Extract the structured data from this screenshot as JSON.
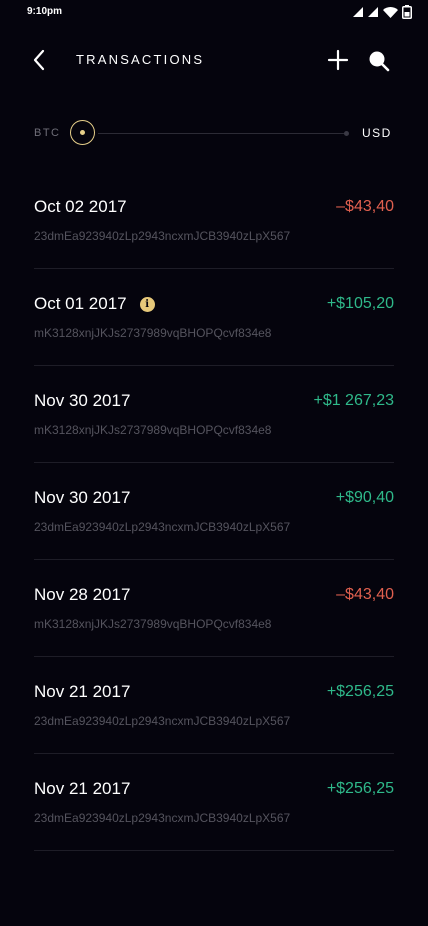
{
  "status_bar": {
    "time": "9:10pm",
    "icons": [
      "signal-icon",
      "signal-icon",
      "wifi-icon",
      "battery-icon"
    ]
  },
  "header": {
    "title": "TRANSACTIONS",
    "back_icon": "chevron-left-icon",
    "add_icon": "plus-icon",
    "search_icon": "search-icon"
  },
  "currency_toggle": {
    "left_label": "BTC",
    "right_label": "USD",
    "accent_color": "#e6cf8a"
  },
  "colors": {
    "negative": "#e0604f",
    "positive": "#2fb98a",
    "background": "#05040d"
  },
  "transactions": [
    {
      "date": "Oct 02 2017",
      "amount": "–$43,40",
      "sign": "neg",
      "hash": "23dmEa923940zLp2943ncxmJCB3940zLpX567",
      "info": false
    },
    {
      "date": "Oct 01 2017",
      "amount": "+$105,20",
      "sign": "pos",
      "hash": "mK3128xnjJKJs2737989vqBHOPQcvf834e8",
      "info": true
    },
    {
      "date": "Nov 30 2017",
      "amount": "+$1 267,23",
      "sign": "pos",
      "hash": "mK3128xnjJKJs2737989vqBHOPQcvf834e8",
      "info": false
    },
    {
      "date": "Nov 30 2017",
      "amount": "+$90,40",
      "sign": "pos",
      "hash": "23dmEa923940zLp2943ncxmJCB3940zLpX567",
      "info": false
    },
    {
      "date": "Nov 28 2017",
      "amount": "–$43,40",
      "sign": "neg",
      "hash": "mK3128xnjJKJs2737989vqBHOPQcvf834e8",
      "info": false
    },
    {
      "date": "Nov 21 2017",
      "amount": "+$256,25",
      "sign": "pos",
      "hash": "23dmEa923940zLp2943ncxmJCB3940zLpX567",
      "info": false
    },
    {
      "date": "Nov 21 2017",
      "amount": "+$256,25",
      "sign": "pos",
      "hash": "23dmEa923940zLp2943ncxmJCB3940zLpX567",
      "info": false
    }
  ]
}
